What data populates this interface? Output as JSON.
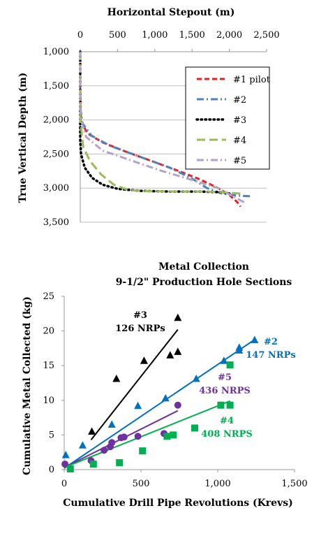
{
  "chart_data": [
    {
      "type": "line",
      "title": "",
      "xlabel": "Horizontal Stepout (m)",
      "ylabel": "True Vertical Depth (m)",
      "xlim": [
        0,
        2500
      ],
      "ylim": [
        1000,
        3500
      ],
      "y_inverted": true,
      "x_axis_position": "top",
      "grid": "horizontal",
      "legend_position": "top-right",
      "x_ticks": [
        "0",
        "500",
        "1,000",
        "1,500",
        "2,000",
        "2,500"
      ],
      "y_ticks": [
        "1,000",
        "1,500",
        "2,000",
        "2,500",
        "3,000",
        "3,500"
      ],
      "series": [
        {
          "name": "#1 pilot",
          "color": "#ee1c1c",
          "dash": "long-dash",
          "points": [
            [
              0,
              1000
            ],
            [
              0,
              1400
            ],
            [
              5,
              1900
            ],
            [
              20,
              2050
            ],
            [
              100,
              2200
            ],
            [
              300,
              2330
            ],
            [
              600,
              2460
            ],
            [
              1000,
              2620
            ],
            [
              1300,
              2740
            ],
            [
              1600,
              2870
            ],
            [
              1850,
              3000
            ],
            [
              2000,
              3100
            ],
            [
              2100,
              3200
            ],
            [
              2150,
              3270
            ]
          ]
        },
        {
          "name": "#2",
          "color": "#4f81bd",
          "dash": "dash-dot",
          "points": [
            [
              0,
              1000
            ],
            [
              0,
              1500
            ],
            [
              5,
              1850
            ],
            [
              30,
              2050
            ],
            [
              150,
              2230
            ],
            [
              400,
              2380
            ],
            [
              800,
              2540
            ],
            [
              1200,
              2700
            ],
            [
              1500,
              2860
            ],
            [
              1700,
              3000
            ],
            [
              1900,
              3080
            ],
            [
              2100,
              3110
            ],
            [
              2300,
              3120
            ]
          ]
        },
        {
          "name": "#3",
          "color": "#000000",
          "dash": "dotted",
          "points": [
            [
              0,
              1000
            ],
            [
              0,
              2300
            ],
            [
              10,
              2500
            ],
            [
              60,
              2700
            ],
            [
              160,
              2850
            ],
            [
              300,
              2950
            ],
            [
              500,
              3010
            ],
            [
              800,
              3040
            ],
            [
              1200,
              3050
            ],
            [
              1600,
              3050
            ],
            [
              1900,
              3060
            ],
            [
              2000,
              3080
            ]
          ]
        },
        {
          "name": "#4",
          "color": "#9bbb59",
          "dash": "dash",
          "points": [
            [
              0,
              1000
            ],
            [
              0,
              2000
            ],
            [
              40,
              2400
            ],
            [
              130,
              2600
            ],
            [
              280,
              2800
            ],
            [
              450,
              2950
            ],
            [
              650,
              3030
            ],
            [
              900,
              3045
            ],
            [
              1300,
              3050
            ],
            [
              1700,
              3050
            ],
            [
              1900,
              3060
            ],
            [
              2150,
              3080
            ]
          ]
        },
        {
          "name": "#5",
          "color": "#b3a2c7",
          "dash": "dash-dot",
          "points": [
            [
              0,
              1000
            ],
            [
              0,
              1800
            ],
            [
              10,
              2000
            ],
            [
              80,
              2250
            ],
            [
              300,
              2450
            ],
            [
              700,
              2600
            ],
            [
              1100,
              2750
            ],
            [
              1500,
              2880
            ],
            [
              1850,
              3000
            ],
            [
              2050,
              3120
            ],
            [
              2200,
              3210
            ]
          ]
        }
      ]
    },
    {
      "type": "scatter",
      "title": "Metal Collection\n9-1/2\" Production Hole Sections",
      "title_lines": [
        "Metal Collection",
        "9-1/2\" Production Hole Sections"
      ],
      "xlabel": "Cumulative Drill Pipe Revolutions (Krevs)",
      "ylabel": "Cumulative Metal Collected (kg)",
      "xlim": [
        0,
        1500
      ],
      "ylim": [
        0,
        25
      ],
      "grid": "none",
      "x_ticks": [
        "0",
        "500",
        "1,000",
        "1,500"
      ],
      "y_ticks": [
        "0",
        "5",
        "10",
        "15",
        "20",
        "25"
      ],
      "series": [
        {
          "name": "#3",
          "color": "#000000",
          "marker": "triangle",
          "points": [
            [
              180,
              5.5
            ],
            [
              340,
              13.1
            ],
            [
              520,
              15.7
            ],
            [
              690,
              16.5
            ],
            [
              740,
              17
            ],
            [
              740,
              21.9
            ]
          ],
          "trend": [
            [
              175,
              4.3
            ],
            [
              740,
              20.2
            ]
          ]
        },
        {
          "name": "#2",
          "color": "#0070c0",
          "marker": "triangle",
          "points": [
            [
              10,
              2.1
            ],
            [
              120,
              3.5
            ],
            [
              310,
              6.5
            ],
            [
              480,
              9.2
            ],
            [
              660,
              10.3
            ],
            [
              860,
              13.1
            ],
            [
              1040,
              15.7
            ],
            [
              1140,
              17.2
            ],
            [
              1140,
              17.6
            ],
            [
              1240,
              18.7
            ]
          ],
          "trend": [
            [
              0,
              0.2
            ],
            [
              1230,
              18.6
            ]
          ]
        },
        {
          "name": "#5",
          "color": "#7030a0",
          "marker": "circle",
          "points": [
            [
              5,
              0.8
            ],
            [
              175,
              1.3
            ],
            [
              260,
              2.8
            ],
            [
              300,
              3.3
            ],
            [
              310,
              3.9
            ],
            [
              370,
              4.6
            ],
            [
              390,
              4.7
            ],
            [
              480,
              4.8
            ],
            [
              650,
              5.2
            ],
            [
              740,
              9.3
            ]
          ],
          "trend": [
            [
              0,
              0.3
            ],
            [
              740,
              8.5
            ]
          ]
        },
        {
          "name": "#4",
          "color": "#00b050",
          "marker": "square",
          "points": [
            [
              40,
              0.1
            ],
            [
              190,
              0.8
            ],
            [
              360,
              1.0
            ],
            [
              510,
              2.7
            ],
            [
              670,
              4.8
            ],
            [
              710,
              5.0
            ],
            [
              850,
              6.0
            ],
            [
              1020,
              9.3
            ],
            [
              1080,
              9.3
            ],
            [
              1080,
              15.1
            ]
          ],
          "trend": [
            [
              0,
              0.3
            ],
            [
              1080,
              9.9
            ]
          ]
        }
      ],
      "annotations": [
        {
          "lines": [
            "#3",
            "126 NRPs"
          ],
          "color": "#000000"
        },
        {
          "lines": [
            "#2",
            "147 NRPs"
          ],
          "color": "#0070c0"
        },
        {
          "lines": [
            "#5",
            "436 NRPS"
          ],
          "color": "#7030a0"
        },
        {
          "lines": [
            "#4",
            "408 NRPS"
          ],
          "color": "#00b050"
        }
      ]
    }
  ]
}
